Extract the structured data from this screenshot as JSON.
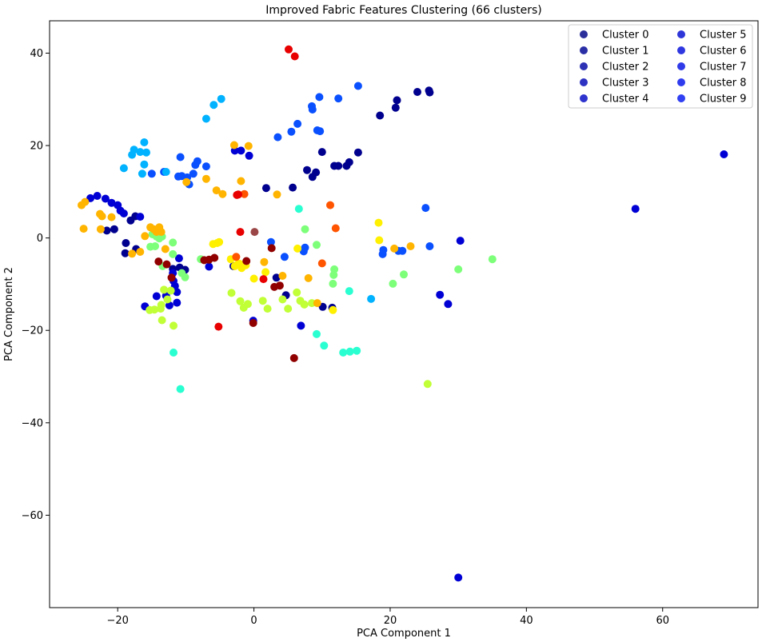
{
  "chart_data": {
    "type": "scatter",
    "title": "Improved Fabric Features Clustering (66 clusters)",
    "xlabel": "PCA Component 1",
    "ylabel": "PCA Component 2",
    "xlim": [
      -30,
      74
    ],
    "ylim": [
      -80,
      47
    ],
    "xticks": [
      -20,
      0,
      20,
      40,
      60
    ],
    "yticks": [
      -60,
      -40,
      -20,
      0,
      20,
      40
    ],
    "tick_labels": {
      "x": [
        "−20",
        "0",
        "20",
        "40",
        "60"
      ],
      "y": [
        "−60",
        "−40",
        "−20",
        "0",
        "20",
        "40"
      ]
    },
    "grid": false,
    "legend_position": "top-right",
    "legend_entries": [
      {
        "label": "Cluster 0",
        "color": "#2b2f9a"
      },
      {
        "label": "Cluster 1",
        "color": "#2b2fa6"
      },
      {
        "label": "Cluster 2",
        "color": "#2d31b4"
      },
      {
        "label": "Cluster 3",
        "color": "#2e32c2"
      },
      {
        "label": "Cluster 4",
        "color": "#2f34ce"
      },
      {
        "label": "Cluster 5",
        "color": "#2f36d8"
      },
      {
        "label": "Cluster 6",
        "color": "#2f38e0"
      },
      {
        "label": "Cluster 7",
        "color": "#2f3ae8"
      },
      {
        "label": "Cluster 8",
        "color": "#2f3cee"
      },
      {
        "label": "Cluster 9",
        "color": "#3040f2"
      }
    ],
    "series": [
      {
        "color": "#00008f",
        "points": [
          [
            21,
            29.8
          ],
          [
            24,
            31.6
          ],
          [
            25.7,
            31.9
          ],
          [
            25.8,
            31.5
          ],
          [
            20.8,
            28.2
          ],
          [
            18.5,
            26.5
          ],
          [
            15.3,
            18.5
          ],
          [
            14,
            16.4
          ],
          [
            13.6,
            15.6
          ],
          [
            12.4,
            15.6
          ],
          [
            11.8,
            15.6
          ],
          [
            10,
            18.6
          ],
          [
            9.1,
            14.2
          ],
          [
            8.6,
            13.2
          ],
          [
            7.8,
            14.7
          ],
          [
            5.7,
            10.9
          ],
          [
            1.8,
            10.8
          ],
          [
            -20.5,
            1.9
          ],
          [
            -21.6,
            1.6
          ],
          [
            -18.8,
            -1.1
          ],
          [
            -18.9,
            -3.3
          ],
          [
            -17.3,
            -2.4
          ],
          [
            -18.1,
            3.8
          ],
          [
            -17.4,
            4.7
          ],
          [
            -10.1,
            -6.9
          ],
          [
            -10.9,
            -6.4
          ],
          [
            -11.9,
            -6.7
          ],
          [
            -3,
            -6.1
          ],
          [
            3.3,
            -8.6
          ],
          [
            4.7,
            -12.4
          ],
          [
            10.1,
            -14.9
          ],
          [
            11.5,
            -15.1
          ]
        ]
      },
      {
        "color": "#0000d5",
        "points": [
          [
            69,
            18.1
          ],
          [
            56,
            6.3
          ],
          [
            30,
            -73.5
          ],
          [
            -24,
            8.6
          ],
          [
            -23,
            9.1
          ],
          [
            -21.8,
            8.5
          ],
          [
            -20.9,
            7.6
          ],
          [
            -20,
            7.1
          ],
          [
            -19.6,
            5.9
          ],
          [
            -19.1,
            5.3
          ],
          [
            -16.7,
            4.6
          ],
          [
            -16,
            -14.8
          ],
          [
            -14.3,
            -12.6
          ],
          [
            -12.9,
            -12.5
          ],
          [
            -11.3,
            -14
          ],
          [
            -11.3,
            -11.7
          ],
          [
            -11.6,
            -10.4
          ],
          [
            -12.4,
            -14.6
          ],
          [
            -11.8,
            -9.3
          ],
          [
            -11.9,
            -7.6
          ],
          [
            -11,
            -4.4
          ],
          [
            -6.6,
            -6.2
          ],
          [
            -2.8,
            18.9
          ],
          [
            -1.9,
            18.9
          ],
          [
            -0.7,
            17.8
          ],
          [
            -0.1,
            -17.9
          ],
          [
            6.9,
            -19
          ],
          [
            30.3,
            -0.6
          ],
          [
            28.5,
            -14.3
          ],
          [
            27.3,
            -12.3
          ]
        ]
      },
      {
        "color": "#0a50ff",
        "points": [
          [
            25.8,
            -1.8
          ],
          [
            25.2,
            6.5
          ],
          [
            21.8,
            -2.8
          ],
          [
            21.2,
            -2.8
          ],
          [
            18.9,
            -3.5
          ],
          [
            19,
            -2.6
          ],
          [
            -15,
            13.9
          ],
          [
            -13.2,
            14.3
          ],
          [
            -11.1,
            13.3
          ],
          [
            -10.6,
            13.4
          ],
          [
            -10.8,
            17.5
          ],
          [
            -9.8,
            13.1
          ],
          [
            -8.6,
            15.8
          ],
          [
            -8.3,
            16.6
          ],
          [
            -7,
            15.5
          ],
          [
            -8.9,
            13.9
          ],
          [
            -9.5,
            11.6
          ],
          [
            3.5,
            21.8
          ],
          [
            4.5,
            -4.1
          ],
          [
            5.5,
            23
          ],
          [
            6.4,
            24.7
          ],
          [
            8.6,
            27.8
          ],
          [
            9.3,
            23.3
          ],
          [
            9.7,
            23.1
          ],
          [
            9.6,
            30.5
          ],
          [
            12.4,
            30.2
          ],
          [
            15.3,
            32.9
          ],
          [
            8.5,
            28.5
          ],
          [
            2.5,
            -0.9
          ],
          [
            7.3,
            -2.9
          ],
          [
            7.5,
            -2.1
          ]
        ]
      },
      {
        "color": "#00b2ff",
        "points": [
          [
            -19.1,
            15.1
          ],
          [
            -17.9,
            18
          ],
          [
            -17.6,
            19.1
          ],
          [
            -16.1,
            20.7
          ],
          [
            -16.1,
            15.9
          ],
          [
            -16.4,
            13.9
          ],
          [
            -16.7,
            18.6
          ],
          [
            -15.8,
            18.5
          ],
          [
            -12.9,
            14.3
          ],
          [
            -7,
            25.8
          ],
          [
            -5.9,
            28.8
          ],
          [
            -4.8,
            30.1
          ],
          [
            17.2,
            -13.2
          ]
        ]
      },
      {
        "color": "#2affd1",
        "points": [
          [
            -11.8,
            -24.8
          ],
          [
            -10.8,
            -32.7
          ],
          [
            9.2,
            -20.8
          ],
          [
            10.3,
            -23.3
          ],
          [
            13.1,
            -24.8
          ],
          [
            14.1,
            -24.6
          ],
          [
            15.1,
            -24.4
          ],
          [
            14,
            -11.5
          ],
          [
            6.6,
            6.3
          ]
        ]
      },
      {
        "color": "#7dff7a",
        "points": [
          [
            -14.9,
            0.8
          ],
          [
            -14.3,
            0.3
          ],
          [
            -13.9,
            -0.1
          ],
          [
            -13.5,
            0.3
          ],
          [
            -15.2,
            -1.9
          ],
          [
            -14.5,
            -1.8
          ],
          [
            -11.9,
            -1
          ],
          [
            -11.9,
            -3.5
          ],
          [
            -10.6,
            -7.6
          ],
          [
            -10.1,
            -8.5
          ],
          [
            -7.8,
            -4.6
          ],
          [
            7.5,
            1.9
          ],
          [
            9.2,
            -1.5
          ],
          [
            11.8,
            -6.8
          ],
          [
            11.7,
            -8
          ],
          [
            11.6,
            -9.9
          ],
          [
            22,
            -7.9
          ],
          [
            20.4,
            -9.9
          ],
          [
            30,
            -6.8
          ],
          [
            35,
            -4.6
          ],
          [
            -13.4,
            -6.1
          ]
        ]
      },
      {
        "color": "#c1ff36",
        "points": [
          [
            -15.3,
            -15.6
          ],
          [
            -14.6,
            -15.5
          ],
          [
            -13.7,
            -15.3
          ],
          [
            -13.6,
            -14.5
          ],
          [
            -13.5,
            -17.8
          ],
          [
            -13.2,
            -11.2
          ],
          [
            -12.7,
            -13.3
          ],
          [
            -12.2,
            -11.4
          ],
          [
            -11.8,
            -19
          ],
          [
            -3.3,
            -11.9
          ],
          [
            -2,
            -13.7
          ],
          [
            -1.5,
            -15.1
          ],
          [
            -0.9,
            -14.3
          ],
          [
            1.3,
            -13.6
          ],
          [
            2,
            -15.3
          ],
          [
            4.2,
            -13.3
          ],
          [
            5,
            -15.3
          ],
          [
            6.3,
            -11.8
          ],
          [
            6.8,
            -13.6
          ],
          [
            7.4,
            -14.4
          ],
          [
            8.5,
            -14.1
          ],
          [
            25.5,
            -31.6
          ]
        ]
      },
      {
        "color": "#fff000",
        "points": [
          [
            -6,
            -1.3
          ],
          [
            -5.4,
            -1.1
          ],
          [
            -5.1,
            -0.9
          ],
          [
            -3.4,
            -4.6
          ],
          [
            -2.8,
            -6.1
          ],
          [
            -2.4,
            -5.7
          ],
          [
            -2.1,
            -5.6
          ],
          [
            -1.8,
            -6.5
          ],
          [
            -1.2,
            -5.9
          ],
          [
            0,
            -8.8
          ],
          [
            1.7,
            -7.4
          ],
          [
            6.4,
            -2.3
          ],
          [
            18.3,
            3.3
          ],
          [
            18.4,
            -0.5
          ],
          [
            11.6,
            -15.6
          ]
        ]
      },
      {
        "color": "#ffb400",
        "points": [
          [
            -25.3,
            7.1
          ],
          [
            -24.8,
            7.8
          ],
          [
            -22.6,
            5.2
          ],
          [
            -22.3,
            4.7
          ],
          [
            -20.9,
            4.5
          ],
          [
            -22.5,
            1.9
          ],
          [
            -25,
            2
          ],
          [
            -17.9,
            -3.4
          ],
          [
            -16.7,
            -3
          ],
          [
            -16,
            0.4
          ],
          [
            -15.2,
            2.3
          ],
          [
            -14.7,
            1.9
          ],
          [
            -14.3,
            1.3
          ],
          [
            -13.9,
            2.3
          ],
          [
            -13.6,
            1.3
          ],
          [
            -13,
            -2.4
          ],
          [
            -9.9,
            12.1
          ],
          [
            -7,
            12.8
          ],
          [
            -5.5,
            10.3
          ],
          [
            -4.6,
            9.5
          ],
          [
            -2.9,
            20.1
          ],
          [
            -0.8,
            19.9
          ],
          [
            -1.9,
            12.3
          ],
          [
            1.5,
            -5.2
          ],
          [
            3.4,
            9.4
          ],
          [
            4.2,
            -8.2
          ],
          [
            8,
            -8.7
          ],
          [
            9.3,
            -14.1
          ],
          [
            20.6,
            -2.3
          ],
          [
            23,
            -1.8
          ]
        ]
      },
      {
        "color": "#ff5400",
        "points": [
          [
            10,
            -5.5
          ],
          [
            11.2,
            7.1
          ],
          [
            12,
            2.1
          ],
          [
            -2.6,
            -4.1
          ],
          [
            -1.4,
            9.5
          ]
        ]
      },
      {
        "color": "#e80000",
        "points": [
          [
            5.1,
            40.8
          ],
          [
            6,
            39.3
          ],
          [
            -2.3,
            9.4
          ],
          [
            -2.5,
            9.3
          ],
          [
            -2,
            1.3
          ],
          [
            1.4,
            -8.9
          ],
          [
            -5.2,
            -19.2
          ]
        ]
      },
      {
        "color": "#900000",
        "points": [
          [
            -14,
            -5.1
          ],
          [
            -12.8,
            -5.7
          ],
          [
            -12.1,
            -8.6
          ],
          [
            -7.3,
            -4.8
          ],
          [
            -6.6,
            -4.7
          ],
          [
            -5.8,
            -4.3
          ],
          [
            -1.1,
            -5
          ],
          [
            -0.1,
            -18.4
          ],
          [
            2.6,
            -2.2
          ],
          [
            3,
            -10.6
          ],
          [
            3.8,
            -10.3
          ],
          [
            5.9,
            -26
          ]
        ]
      },
      {
        "color": "#9b4646",
        "points": [
          [
            0.1,
            1.3
          ]
        ]
      }
    ]
  }
}
